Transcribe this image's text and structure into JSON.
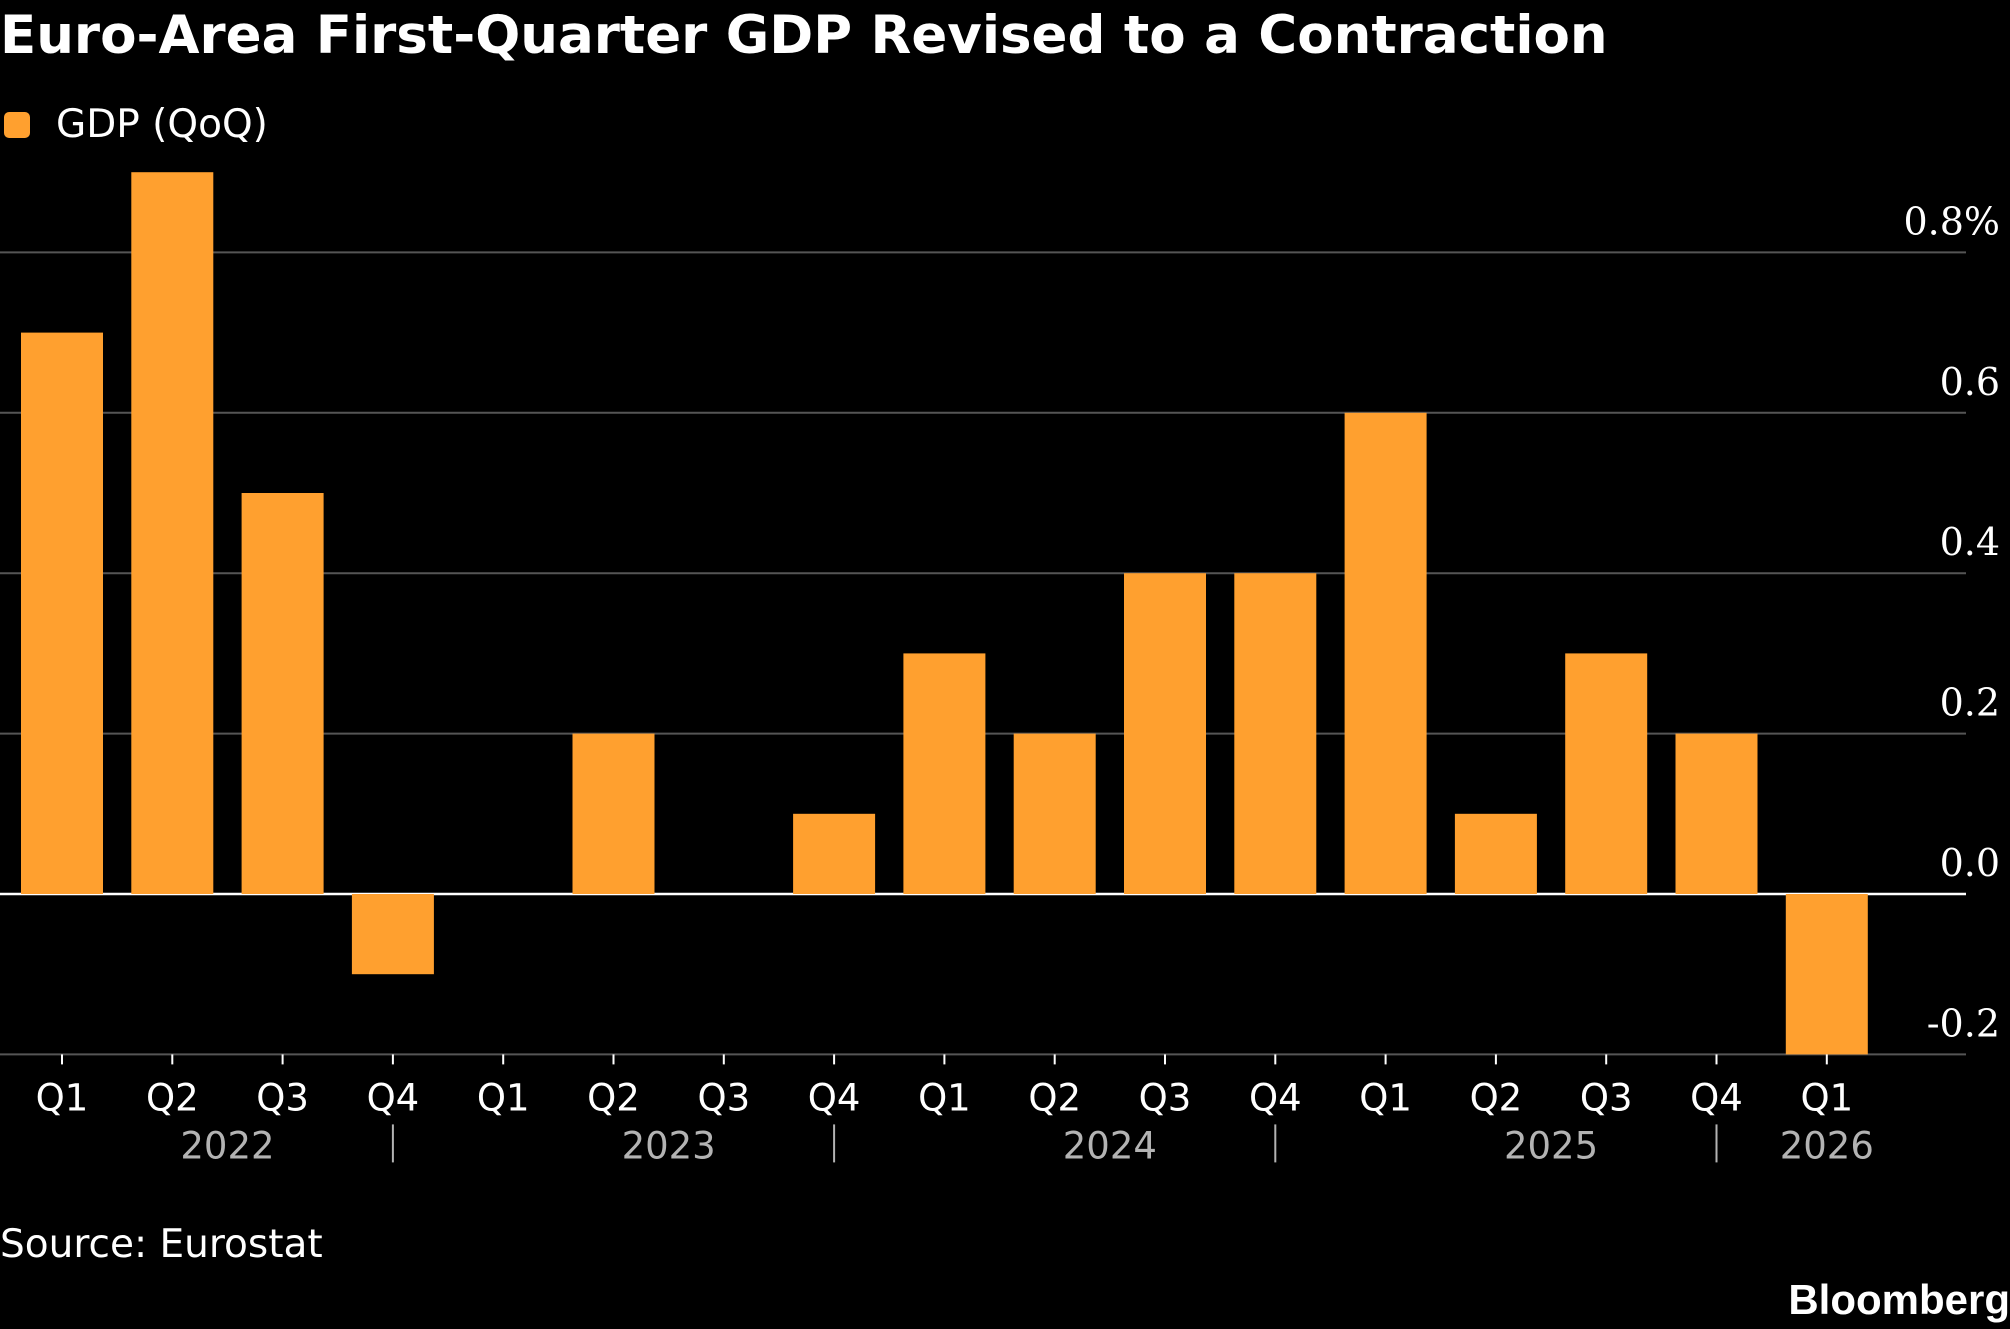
{
  "title": "Euro-Area First-Quarter GDP Revised to a Contraction",
  "legend": {
    "label": "GDP (QoQ)",
    "color": "#ffa02f"
  },
  "source": "Source: Eurostat",
  "brand": "Bloomberg",
  "colors": {
    "background": "#000000",
    "bar": "#ffa02f",
    "grid": "#555555",
    "zero_line": "#ffffff",
    "text": "#ffffff",
    "year_label": "#b3b3b3"
  },
  "chart_data": {
    "type": "bar",
    "categories": [
      "Q1",
      "Q2",
      "Q3",
      "Q4",
      "Q1",
      "Q2",
      "Q3",
      "Q4",
      "Q1",
      "Q2",
      "Q3",
      "Q4",
      "Q1",
      "Q2",
      "Q3",
      "Q4",
      "Q1"
    ],
    "years": [
      "2022",
      "2023",
      "2024",
      "2025",
      "2026"
    ],
    "series": [
      {
        "name": "GDP (QoQ)",
        "values": [
          0.7,
          0.9,
          0.5,
          -0.1,
          0.0,
          0.2,
          0.0,
          0.1,
          0.3,
          0.2,
          0.4,
          0.4,
          0.6,
          0.1,
          0.3,
          0.2,
          -0.2
        ]
      }
    ],
    "y_ticks": [
      0.8,
      0.6,
      0.4,
      0.2,
      0.0,
      -0.2
    ],
    "y_tick_labels": [
      "0.8%",
      "0.6",
      "0.4",
      "0.2",
      "0.0",
      "-0.2"
    ],
    "ylim": [
      -0.2,
      0.9
    ],
    "grid": true,
    "y_axis_position": "right",
    "legend_position": "top-left"
  }
}
